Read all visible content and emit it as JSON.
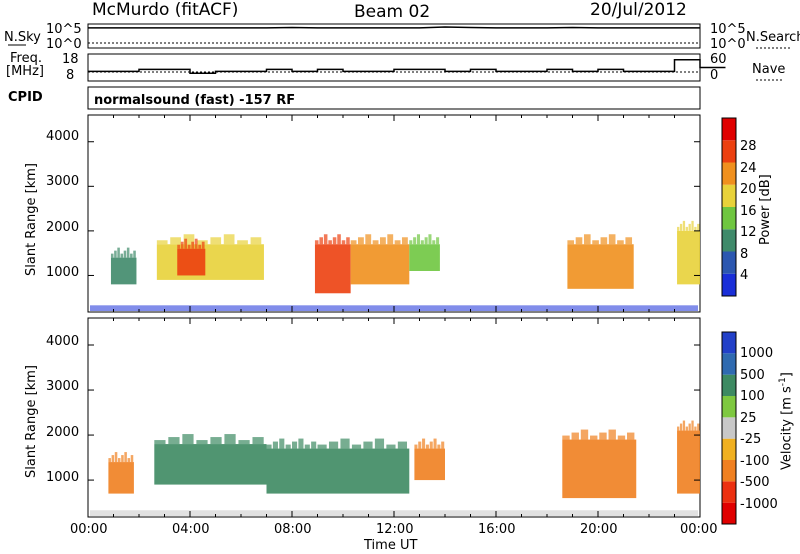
{
  "header": {
    "station": "McMurdo (fitACF)",
    "beam": "Beam 02",
    "date": "20/Jul/2012"
  },
  "status_panels": {
    "nsky_label": "N.Sky",
    "nsky_ticks": [
      "10^5",
      "10^0"
    ],
    "nsearch_label": "N.Search",
    "nsearch_ticks": [
      "10^5",
      "10^0"
    ],
    "freq_label_line1": "Freq.",
    "freq_label_line2": "[MHz]",
    "freq_ticks": [
      "18",
      "8"
    ],
    "nave_label": "Nave",
    "nave_ticks": [
      "60",
      "0"
    ],
    "cpid_label": "CPID",
    "cpid_text": "normalsound (fast) -157 RF",
    "nsky_level": [
      4.6,
      4.6,
      4.6,
      4.6,
      4.6,
      4.6,
      4.6,
      4.6,
      4.7,
      4.6,
      4.6,
      4.6,
      4.6,
      4.6,
      4.8,
      4.7,
      4.6,
      4.6,
      4.6,
      4.7,
      4.6,
      4.6,
      4.6,
      4.6,
      4.6
    ],
    "freq_mhz": [
      11,
      11,
      12,
      12,
      10,
      11,
      11,
      12,
      11,
      12,
      11,
      11,
      12,
      12,
      11,
      12,
      11,
      11,
      12,
      11,
      12,
      11,
      11,
      17,
      13
    ]
  },
  "panel_power": {
    "ylabel": "Slant Range [km]",
    "yticks": [
      "1000",
      "2000",
      "3000",
      "4000"
    ],
    "colorbar_label": "Power [dB]",
    "colorbar_ticks": [
      "4",
      "8",
      "12",
      "16",
      "20",
      "24",
      "28"
    ],
    "colors": [
      "#1a2fd8",
      "#2c57b0",
      "#3f8a6a",
      "#6fc640",
      "#e8d23a",
      "#f0901e",
      "#ec4010",
      "#e00000"
    ]
  },
  "panel_velocity": {
    "ylabel": "Slant Range [km]",
    "yticks": [
      "1000",
      "2000",
      "3000",
      "4000"
    ],
    "colorbar_label": "Velocity [m s",
    "colorbar_label_sup": "-1",
    "colorbar_label_end": "]",
    "colorbar_ticks": [
      "1000",
      "500",
      "100",
      "25",
      "-25",
      "-100",
      "-500",
      "-1000"
    ],
    "colors": [
      "#2240c8",
      "#2f6ab0",
      "#3d8a62",
      "#7ec840",
      "#c8c8c8",
      "#f0b020",
      "#f08020",
      "#ec3010",
      "#e00000"
    ]
  },
  "x_axis": {
    "label": "Time UT",
    "ticks": [
      "00:00",
      "04:00",
      "08:00",
      "12:00",
      "16:00",
      "20:00",
      "00:00"
    ]
  },
  "chart_data": [
    {
      "type": "heatmap",
      "title": "Power",
      "xlabel": "Time UT",
      "ylabel": "Slant Range [km]",
      "xlim": [
        0,
        24
      ],
      "ylim": [
        180,
        4600
      ],
      "colorbar": {
        "label": "Power [dB]",
        "range": [
          0,
          32
        ]
      },
      "regions": [
        {
          "t0": 0.9,
          "t1": 1.9,
          "r0": 800,
          "r1": 1400,
          "value": 10
        },
        {
          "t0": 2.7,
          "t1": 6.9,
          "r0": 900,
          "r1": 1700,
          "value": 18
        },
        {
          "t0": 3.5,
          "t1": 4.6,
          "r0": 1000,
          "r1": 1600,
          "value": 26
        },
        {
          "t0": 8.9,
          "t1": 10.3,
          "r0": 600,
          "r1": 1700,
          "value": 26
        },
        {
          "t0": 10.3,
          "t1": 12.6,
          "r0": 800,
          "r1": 1700,
          "value": 22
        },
        {
          "t0": 12.6,
          "t1": 13.8,
          "r0": 1100,
          "r1": 1700,
          "value": 14
        },
        {
          "t0": 18.8,
          "t1": 21.4,
          "r0": 700,
          "r1": 1700,
          "value": 20
        },
        {
          "t0": 23.1,
          "t1": 24.0,
          "r0": 800,
          "r1": 2000,
          "value": 18
        }
      ]
    },
    {
      "type": "heatmap",
      "title": "Velocity",
      "xlabel": "Time UT",
      "ylabel": "Slant Range [km]",
      "xlim": [
        0,
        24
      ],
      "ylim": [
        180,
        4600
      ],
      "colorbar": {
        "label": "Velocity [m s-1]",
        "range": [
          -1000,
          1000
        ]
      },
      "regions": [
        {
          "t0": 0.8,
          "t1": 1.8,
          "r0": 700,
          "r1": 1400,
          "value": -300
        },
        {
          "t0": 2.6,
          "t1": 7.0,
          "r0": 900,
          "r1": 1800,
          "value": 200
        },
        {
          "t0": 7.0,
          "t1": 9.0,
          "r0": 700,
          "r1": 1700,
          "value": 150
        },
        {
          "t0": 9.0,
          "t1": 12.6,
          "r0": 700,
          "r1": 1700,
          "value": 120
        },
        {
          "t0": 12.8,
          "t1": 14.0,
          "r0": 1000,
          "r1": 1700,
          "value": -200
        },
        {
          "t0": 18.6,
          "t1": 21.5,
          "r0": 600,
          "r1": 1900,
          "value": -300
        },
        {
          "t0": 23.1,
          "t1": 24.0,
          "r0": 700,
          "r1": 2100,
          "value": -400
        }
      ]
    }
  ]
}
